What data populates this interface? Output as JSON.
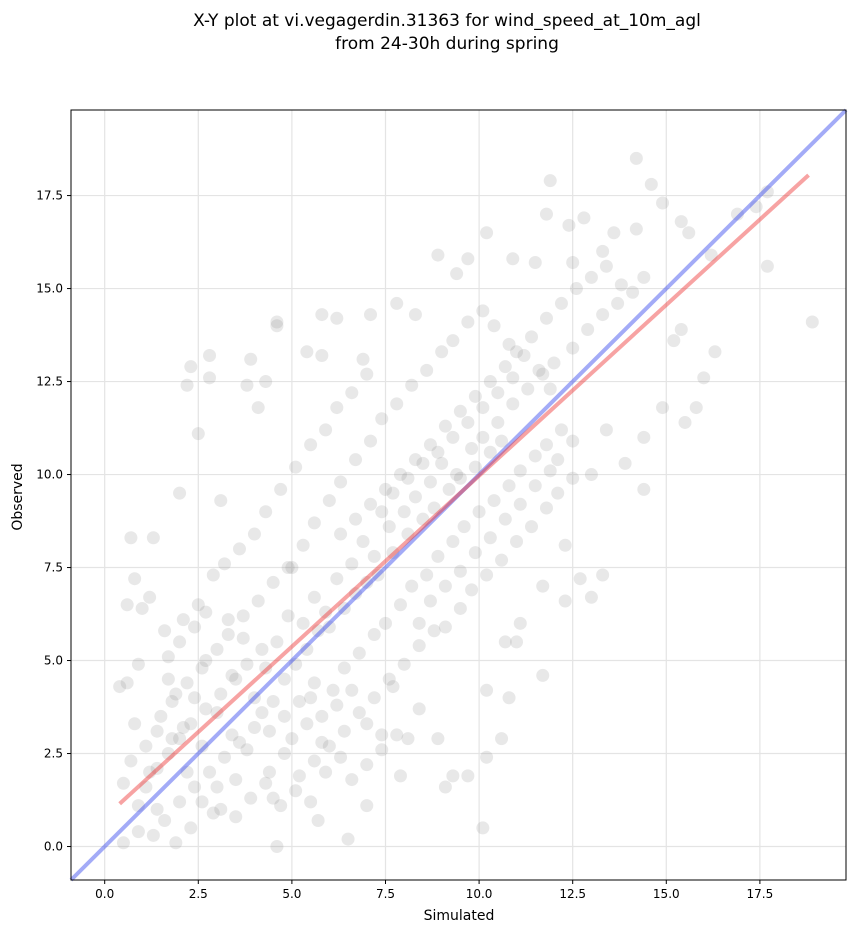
{
  "chart_data": {
    "type": "scatter",
    "title_lines": [
      "X-Y plot at vi.vegagerdin.31363 for wind_speed_at_10m_agl",
      "from 24-30h during spring"
    ],
    "xlabel": "Simulated",
    "ylabel": "Observed",
    "xlim": [
      -0.9,
      19.8
    ],
    "ylim": [
      -0.9,
      19.8
    ],
    "x_ticks": [
      0.0,
      2.5,
      5.0,
      7.5,
      10.0,
      12.5,
      15.0,
      17.5
    ],
    "y_ticks": [
      0.0,
      2.5,
      5.0,
      7.5,
      10.0,
      12.5,
      15.0,
      17.5
    ],
    "x_tick_labels": [
      "0.0",
      "2.5",
      "5.0",
      "7.5",
      "10.0",
      "12.5",
      "15.0",
      "17.5"
    ],
    "y_tick_labels": [
      "0.0",
      "2.5",
      "5.0",
      "7.5",
      "10.0",
      "12.5",
      "15.0",
      "17.5"
    ],
    "grid": true,
    "point_color": "#808080",
    "reference_line": {
      "x": [
        -0.9,
        19.8
      ],
      "y": [
        -0.9,
        19.8
      ],
      "color": "#3344ee"
    },
    "fit_line": {
      "x": [
        0.4,
        18.8
      ],
      "y": [
        1.15,
        18.05
      ],
      "color": "#ee3333"
    },
    "points": [
      [
        0.4,
        4.3
      ],
      [
        0.6,
        6.5
      ],
      [
        0.8,
        7.2
      ],
      [
        0.7,
        8.3
      ],
      [
        1.3,
        8.3
      ],
      [
        1.2,
        6.7
      ],
      [
        1.0,
        6.4
      ],
      [
        0.9,
        4.9
      ],
      [
        0.5,
        1.7
      ],
      [
        0.5,
        0.1
      ],
      [
        0.7,
        2.3
      ],
      [
        0.6,
        4.4
      ],
      [
        2.0,
        9.5
      ],
      [
        2.3,
        12.9
      ],
      [
        2.2,
        12.4
      ],
      [
        2.5,
        11.1
      ],
      [
        2.8,
        13.2
      ],
      [
        2.8,
        12.6
      ],
      [
        3.1,
        9.3
      ],
      [
        3.9,
        13.1
      ],
      [
        3.8,
        12.4
      ],
      [
        4.1,
        11.8
      ],
      [
        4.3,
        12.5
      ],
      [
        4.6,
        14.0
      ],
      [
        4.6,
        14.1
      ],
      [
        5.4,
        13.3
      ],
      [
        5.8,
        14.3
      ],
      [
        6.2,
        14.2
      ],
      [
        5.8,
        13.2
      ],
      [
        6.9,
        13.1
      ],
      [
        7.1,
        14.3
      ],
      [
        7.8,
        14.6
      ],
      [
        8.3,
        14.3
      ],
      [
        8.9,
        15.9
      ],
      [
        9.4,
        15.4
      ],
      [
        9.7,
        15.8
      ],
      [
        10.2,
        16.5
      ],
      [
        10.9,
        15.8
      ],
      [
        11.5,
        15.7
      ],
      [
        11.9,
        17.9
      ],
      [
        11.8,
        17.0
      ],
      [
        12.4,
        16.7
      ],
      [
        12.8,
        16.9
      ],
      [
        12.5,
        15.7
      ],
      [
        13.3,
        16.0
      ],
      [
        13.6,
        16.5
      ],
      [
        14.2,
        18.5
      ],
      [
        14.6,
        17.8
      ],
      [
        14.2,
        16.6
      ],
      [
        14.9,
        17.3
      ],
      [
        15.4,
        16.8
      ],
      [
        15.6,
        16.5
      ],
      [
        16.2,
        15.9
      ],
      [
        16.9,
        17.0
      ],
      [
        17.4,
        17.2
      ],
      [
        17.7,
        17.6
      ],
      [
        17.7,
        15.6
      ],
      [
        18.9,
        14.1
      ],
      [
        16.0,
        12.6
      ],
      [
        16.3,
        13.3
      ],
      [
        15.4,
        13.9
      ],
      [
        15.2,
        13.6
      ],
      [
        15.5,
        11.4
      ],
      [
        15.8,
        11.8
      ],
      [
        14.9,
        11.8
      ],
      [
        14.4,
        11.0
      ],
      [
        14.4,
        9.6
      ],
      [
        13.9,
        10.3
      ],
      [
        13.4,
        11.2
      ],
      [
        13.0,
        10.0
      ],
      [
        12.5,
        10.9
      ],
      [
        12.1,
        10.4
      ],
      [
        12.3,
        8.1
      ],
      [
        12.7,
        7.2
      ],
      [
        13.3,
        7.3
      ],
      [
        13.0,
        6.7
      ],
      [
        12.3,
        6.6
      ],
      [
        11.7,
        7.0
      ],
      [
        11.1,
        6.0
      ],
      [
        11.7,
        4.6
      ],
      [
        11.0,
        5.5
      ],
      [
        10.7,
        5.5
      ],
      [
        10.2,
        4.2
      ],
      [
        10.8,
        4.0
      ],
      [
        10.6,
        2.9
      ],
      [
        10.2,
        2.4
      ],
      [
        9.7,
        1.9
      ],
      [
        9.3,
        1.9
      ],
      [
        9.1,
        1.6
      ],
      [
        10.1,
        0.5
      ],
      [
        8.9,
        2.9
      ],
      [
        8.4,
        3.7
      ],
      [
        8.1,
        2.9
      ],
      [
        7.9,
        1.9
      ],
      [
        7.7,
        4.3
      ],
      [
        7.4,
        3.0
      ],
      [
        7.0,
        3.3
      ],
      [
        7.0,
        1.1
      ],
      [
        6.5,
        0.2
      ],
      [
        5.7,
        0.7
      ],
      [
        4.6,
        0.0
      ],
      [
        4.5,
        1.3
      ],
      [
        2.9,
        0.9
      ],
      [
        2.3,
        0.5
      ],
      [
        1.9,
        0.1
      ],
      [
        1.4,
        1.0
      ],
      [
        0.9,
        0.4
      ],
      [
        1.2,
        2.0
      ],
      [
        1.8,
        2.9
      ],
      [
        1.9,
        4.1
      ],
      [
        1.7,
        5.1
      ],
      [
        1.6,
        5.8
      ],
      [
        2.1,
        6.1
      ],
      [
        2.5,
        6.5
      ],
      [
        2.9,
        7.3
      ],
      [
        3.2,
        7.6
      ],
      [
        3.3,
        6.1
      ],
      [
        3.7,
        5.6
      ],
      [
        3.4,
        4.6
      ],
      [
        2.7,
        5.0
      ],
      [
        2.4,
        4.0
      ],
      [
        2.1,
        3.2
      ],
      [
        2.6,
        2.7
      ],
      [
        3.0,
        3.6
      ],
      [
        3.4,
        3.0
      ],
      [
        3.8,
        2.6
      ],
      [
        3.5,
        1.8
      ],
      [
        3.0,
        1.6
      ],
      [
        2.6,
        1.2
      ],
      [
        2.2,
        2.0
      ],
      [
        4.0,
        4.0
      ],
      [
        4.3,
        4.8
      ],
      [
        4.6,
        5.5
      ],
      [
        4.9,
        6.2
      ],
      [
        5.3,
        6.0
      ],
      [
        5.6,
        6.7
      ],
      [
        5.9,
        6.3
      ],
      [
        6.2,
        7.2
      ],
      [
        6.6,
        7.6
      ],
      [
        6.9,
        8.2
      ],
      [
        7.2,
        7.8
      ],
      [
        7.6,
        8.6
      ],
      [
        8.0,
        9.0
      ],
      [
        8.3,
        9.4
      ],
      [
        8.7,
        9.8
      ],
      [
        9.0,
        10.3
      ],
      [
        9.4,
        10.0
      ],
      [
        9.8,
        10.7
      ],
      [
        10.1,
        11.0
      ],
      [
        10.5,
        11.4
      ],
      [
        10.9,
        11.9
      ],
      [
        11.3,
        12.3
      ],
      [
        11.7,
        12.7
      ],
      [
        12.0,
        13.0
      ],
      [
        12.5,
        13.4
      ],
      [
        12.9,
        13.9
      ],
      [
        13.3,
        14.3
      ],
      [
        13.7,
        14.6
      ],
      [
        14.1,
        14.9
      ],
      [
        14.4,
        15.3
      ],
      [
        4.2,
        3.6
      ],
      [
        4.5,
        3.9
      ],
      [
        4.8,
        4.5
      ],
      [
        5.1,
        4.9
      ],
      [
        5.4,
        5.3
      ],
      [
        5.7,
        5.8
      ],
      [
        6.0,
        5.9
      ],
      [
        6.4,
        6.4
      ],
      [
        6.7,
        6.8
      ],
      [
        7.0,
        7.1
      ],
      [
        7.3,
        7.3
      ],
      [
        7.7,
        7.9
      ],
      [
        8.1,
        8.4
      ],
      [
        8.5,
        8.8
      ],
      [
        8.8,
        9.1
      ],
      [
        9.2,
        9.6
      ],
      [
        9.5,
        9.9
      ],
      [
        9.9,
        10.2
      ],
      [
        10.3,
        10.6
      ],
      [
        10.6,
        10.9
      ],
      [
        5.0,
        7.5
      ],
      [
        5.3,
        8.1
      ],
      [
        5.6,
        8.7
      ],
      [
        6.0,
        9.3
      ],
      [
        6.3,
        9.8
      ],
      [
        6.7,
        10.4
      ],
      [
        7.1,
        10.9
      ],
      [
        7.4,
        11.5
      ],
      [
        7.8,
        11.9
      ],
      [
        8.2,
        12.4
      ],
      [
        8.6,
        12.8
      ],
      [
        9.0,
        13.3
      ],
      [
        9.3,
        13.6
      ],
      [
        9.7,
        14.1
      ],
      [
        10.1,
        14.4
      ],
      [
        10.4,
        14.0
      ],
      [
        10.8,
        13.5
      ],
      [
        11.2,
        13.2
      ],
      [
        11.6,
        12.8
      ],
      [
        11.9,
        12.3
      ],
      [
        5.5,
        4.0
      ],
      [
        5.8,
        3.5
      ],
      [
        6.1,
        4.2
      ],
      [
        6.4,
        4.8
      ],
      [
        6.8,
        5.2
      ],
      [
        7.2,
        5.7
      ],
      [
        7.5,
        6.0
      ],
      [
        7.9,
        6.5
      ],
      [
        8.2,
        7.0
      ],
      [
        8.6,
        7.3
      ],
      [
        8.9,
        7.8
      ],
      [
        9.3,
        8.2
      ],
      [
        9.6,
        8.6
      ],
      [
        10.0,
        9.0
      ],
      [
        10.4,
        9.3
      ],
      [
        10.8,
        9.7
      ],
      [
        11.1,
        10.1
      ],
      [
        11.5,
        10.5
      ],
      [
        11.8,
        10.8
      ],
      [
        12.2,
        11.2
      ],
      [
        3.6,
        8.0
      ],
      [
        4.0,
        8.4
      ],
      [
        4.3,
        9.0
      ],
      [
        4.7,
        9.6
      ],
      [
        5.1,
        10.2
      ],
      [
        5.5,
        10.8
      ],
      [
        5.9,
        11.2
      ],
      [
        6.2,
        11.8
      ],
      [
        6.6,
        12.2
      ],
      [
        7.0,
        12.7
      ],
      [
        9.1,
        5.9
      ],
      [
        9.5,
        6.4
      ],
      [
        9.8,
        6.9
      ],
      [
        10.2,
        7.3
      ],
      [
        10.6,
        7.7
      ],
      [
        11.0,
        8.2
      ],
      [
        11.4,
        8.6
      ],
      [
        11.8,
        9.1
      ],
      [
        12.1,
        9.5
      ],
      [
        12.5,
        9.9
      ],
      [
        1.1,
        1.6
      ],
      [
        1.4,
        2.1
      ],
      [
        1.7,
        2.5
      ],
      [
        2.0,
        2.9
      ],
      [
        2.3,
        3.3
      ],
      [
        2.7,
        3.7
      ],
      [
        3.1,
        4.1
      ],
      [
        3.5,
        4.5
      ],
      [
        3.8,
        4.9
      ],
      [
        4.2,
        5.3
      ],
      [
        1.5,
        3.5
      ],
      [
        1.8,
        3.9
      ],
      [
        2.2,
        4.4
      ],
      [
        2.6,
        4.8
      ],
      [
        3.0,
        5.3
      ],
      [
        3.3,
        5.7
      ],
      [
        3.7,
        6.2
      ],
      [
        4.1,
        6.6
      ],
      [
        4.5,
        7.1
      ],
      [
        4.9,
        7.5
      ],
      [
        2.0,
        1.2
      ],
      [
        2.4,
        1.6
      ],
      [
        2.8,
        2.0
      ],
      [
        3.2,
        2.4
      ],
      [
        3.6,
        2.8
      ],
      [
        4.0,
        3.2
      ],
      [
        4.4,
        3.1
      ],
      [
        4.8,
        3.5
      ],
      [
        5.2,
        3.9
      ],
      [
        5.6,
        4.4
      ],
      [
        5.2,
        1.9
      ],
      [
        5.6,
        2.3
      ],
      [
        6.0,
        2.7
      ],
      [
        6.4,
        3.1
      ],
      [
        6.8,
        3.6
      ],
      [
        7.2,
        4.0
      ],
      [
        7.6,
        4.5
      ],
      [
        8.0,
        4.9
      ],
      [
        8.4,
        5.4
      ],
      [
        8.8,
        5.8
      ],
      [
        6.3,
        8.4
      ],
      [
        6.7,
        8.8
      ],
      [
        7.1,
        9.2
      ],
      [
        7.5,
        9.6
      ],
      [
        7.9,
        10.0
      ],
      [
        8.3,
        10.4
      ],
      [
        8.7,
        10.8
      ],
      [
        9.1,
        11.3
      ],
      [
        9.5,
        11.7
      ],
      [
        9.9,
        12.1
      ],
      [
        10.3,
        12.5
      ],
      [
        10.7,
        12.9
      ],
      [
        11.0,
        13.3
      ],
      [
        11.4,
        13.7
      ],
      [
        11.8,
        14.2
      ],
      [
        12.2,
        14.6
      ],
      [
        12.6,
        15.0
      ],
      [
        13.0,
        15.3
      ],
      [
        13.4,
        15.6
      ],
      [
        13.8,
        15.1
      ],
      [
        4.4,
        2.0
      ],
      [
        4.8,
        2.5
      ],
      [
        5.1,
        1.5
      ],
      [
        5.5,
        1.2
      ],
      [
        5.9,
        2.0
      ],
      [
        6.3,
        2.4
      ],
      [
        6.6,
        1.8
      ],
      [
        7.0,
        2.2
      ],
      [
        7.4,
        2.6
      ],
      [
        7.8,
        3.0
      ],
      [
        3.1,
        1.0
      ],
      [
        3.5,
        0.8
      ],
      [
        3.9,
        1.3
      ],
      [
        4.3,
        1.7
      ],
      [
        4.7,
        1.1
      ],
      [
        5.0,
        2.9
      ],
      [
        5.4,
        3.3
      ],
      [
        5.8,
        2.8
      ],
      [
        6.2,
        3.8
      ],
      [
        6.6,
        4.2
      ],
      [
        8.4,
        6.0
      ],
      [
        8.7,
        6.6
      ],
      [
        9.1,
        7.0
      ],
      [
        9.5,
        7.4
      ],
      [
        9.9,
        7.9
      ],
      [
        10.3,
        8.3
      ],
      [
        10.7,
        8.8
      ],
      [
        11.1,
        9.2
      ],
      [
        11.5,
        9.7
      ],
      [
        11.9,
        10.1
      ],
      [
        7.4,
        9.0
      ],
      [
        7.7,
        9.5
      ],
      [
        8.1,
        9.9
      ],
      [
        8.5,
        10.3
      ],
      [
        8.9,
        10.6
      ],
      [
        9.3,
        11.0
      ],
      [
        9.7,
        11.4
      ],
      [
        10.1,
        11.8
      ],
      [
        10.5,
        12.2
      ],
      [
        10.9,
        12.6
      ],
      [
        1.3,
        0.3
      ],
      [
        1.6,
        0.7
      ],
      [
        0.9,
        1.1
      ],
      [
        1.1,
        2.7
      ],
      [
        1.4,
        3.1
      ],
      [
        0.8,
        3.3
      ],
      [
        1.7,
        4.5
      ],
      [
        2.0,
        5.5
      ],
      [
        2.4,
        5.9
      ],
      [
        2.7,
        6.3
      ]
    ]
  }
}
